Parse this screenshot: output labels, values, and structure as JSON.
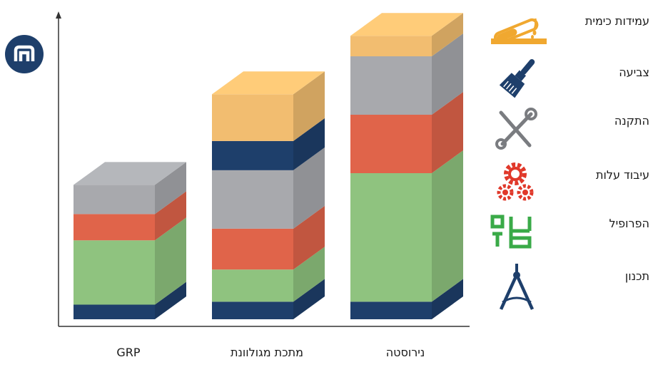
{
  "chart_data": {
    "type": "bar",
    "stacked": true,
    "style": "3d-isometric",
    "title": "",
    "xlabel": "",
    "ylabel": "",
    "ylim": [
      0,
      100
    ],
    "grid": false,
    "legend_placement": "right",
    "categories": [
      "GRP",
      "מתכת מגולוונת",
      "נירוסטה"
    ],
    "series": [
      {
        "name": "תכנון",
        "color": "#1e3f6b",
        "values": [
          5,
          6,
          6
        ]
      },
      {
        "name": "הפרופיל",
        "color": "#8fc37f",
        "values": [
          22,
          11,
          44
        ]
      },
      {
        "name": "עיבוד עלות",
        "color": "#e0644a",
        "values": [
          9,
          14,
          20
        ]
      },
      {
        "name": "צביעה",
        "color": "#a8a9ad",
        "values": [
          10,
          20,
          20
        ]
      },
      {
        "name": "התקנה",
        "color": "#1e3f6b",
        "values": [
          0,
          10,
          0
        ]
      },
      {
        "name": "עמידות כימית",
        "color": "#f2bd70",
        "values": [
          0,
          16,
          7
        ]
      }
    ]
  },
  "legend": {
    "items": [
      {
        "label": "עמידות כימית",
        "icon": "test-tube-icon",
        "color": "#f0a830"
      },
      {
        "label": "צביעה",
        "icon": "paint-brush-icon",
        "color": "#1e3f6b"
      },
      {
        "label": "התקנה",
        "icon": "wrench-screwdriver-icon",
        "color": "#7a7c80"
      },
      {
        "label": "עיבוד עלות",
        "icon": "gears-icon",
        "color": "#e0382a"
      },
      {
        "label": "הפרופיל",
        "icon": "profile-shape-icon",
        "color": "#3aaa48"
      },
      {
        "label": "תכנון",
        "icon": "compass-icon",
        "color": "#1e3f6b"
      }
    ]
  },
  "logo": {
    "icon": "brand-logo-icon",
    "color": "#1e3f6b"
  }
}
